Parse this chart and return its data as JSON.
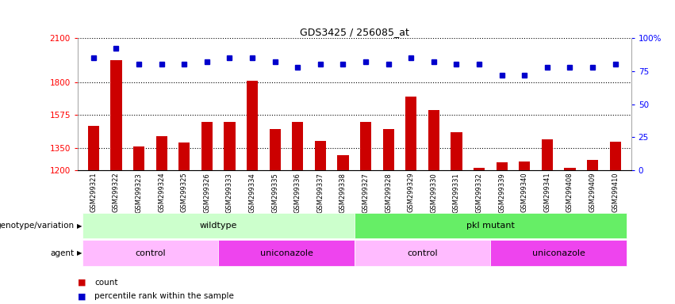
{
  "title": "GDS3425 / 256085_at",
  "samples": [
    "GSM299321",
    "GSM299322",
    "GSM299323",
    "GSM299324",
    "GSM299325",
    "GSM299326",
    "GSM299333",
    "GSM299334",
    "GSM299335",
    "GSM299336",
    "GSM299337",
    "GSM299338",
    "GSM299327",
    "GSM299328",
    "GSM299329",
    "GSM299330",
    "GSM299331",
    "GSM299332",
    "GSM299339",
    "GSM299340",
    "GSM299341",
    "GSM299408",
    "GSM299409",
    "GSM299410"
  ],
  "counts": [
    1500,
    1950,
    1360,
    1430,
    1390,
    1530,
    1530,
    1810,
    1480,
    1530,
    1400,
    1305,
    1530,
    1480,
    1700,
    1610,
    1460,
    1215,
    1255,
    1260,
    1410,
    1215,
    1270,
    1395
  ],
  "percentiles": [
    85,
    92,
    80,
    80,
    80,
    82,
    85,
    85,
    82,
    78,
    80,
    80,
    82,
    80,
    85,
    82,
    80,
    80,
    72,
    72,
    78,
    78,
    78,
    80
  ],
  "bar_color": "#cc0000",
  "dot_color": "#0000cc",
  "ylim_left": [
    1200,
    2100
  ],
  "yticks_left": [
    1200,
    1350,
    1575,
    1800,
    2100
  ],
  "ylim_right": [
    0,
    100
  ],
  "yticks_right": [
    0,
    25,
    50,
    75,
    100
  ],
  "ytick_labels_right": [
    "0",
    "25",
    "50",
    "75",
    "100%"
  ],
  "hlines": [
    1350,
    1575,
    1800
  ],
  "genotype_groups": [
    {
      "label": "wildtype",
      "start": 0,
      "end": 12,
      "color": "#ccffcc"
    },
    {
      "label": "pkl mutant",
      "start": 12,
      "end": 24,
      "color": "#66ee66"
    }
  ],
  "agent_groups": [
    {
      "label": "control",
      "start": 0,
      "end": 6,
      "color": "#ffbbff"
    },
    {
      "label": "uniconazole",
      "start": 6,
      "end": 12,
      "color": "#ee44ee"
    },
    {
      "label": "control",
      "start": 12,
      "end": 18,
      "color": "#ffbbff"
    },
    {
      "label": "uniconazole",
      "start": 18,
      "end": 24,
      "color": "#ee44ee"
    }
  ],
  "row_label_genotype": "genotype/variation",
  "row_label_agent": "agent",
  "legend_count_color": "#cc0000",
  "legend_dot_color": "#0000cc",
  "fig_width": 8.51,
  "fig_height": 3.84,
  "background_color": "#ffffff"
}
